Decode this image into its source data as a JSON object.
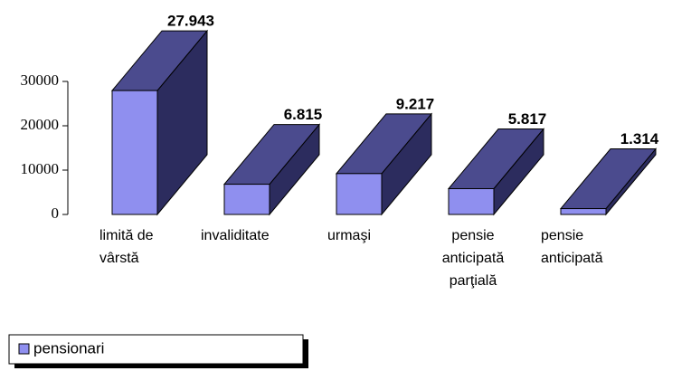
{
  "chart_data": {
    "type": "bar3d",
    "categories": [
      "limită de vârstă",
      "invaliditate",
      "urmaşi",
      "pensie anticipată parţială",
      "pensie anticipată"
    ],
    "series": [
      {
        "name": "pensionari",
        "color": "#8f8fef",
        "values": [
          27943,
          6815,
          9217,
          5817,
          1314
        ],
        "value_labels": [
          "27.943",
          "6.815",
          "9.217",
          "5.817",
          "1.314"
        ]
      }
    ],
    "ylim": [
      0,
      30000
    ],
    "yticks": [
      0,
      10000,
      20000,
      30000
    ],
    "legend": "bottom-left"
  }
}
